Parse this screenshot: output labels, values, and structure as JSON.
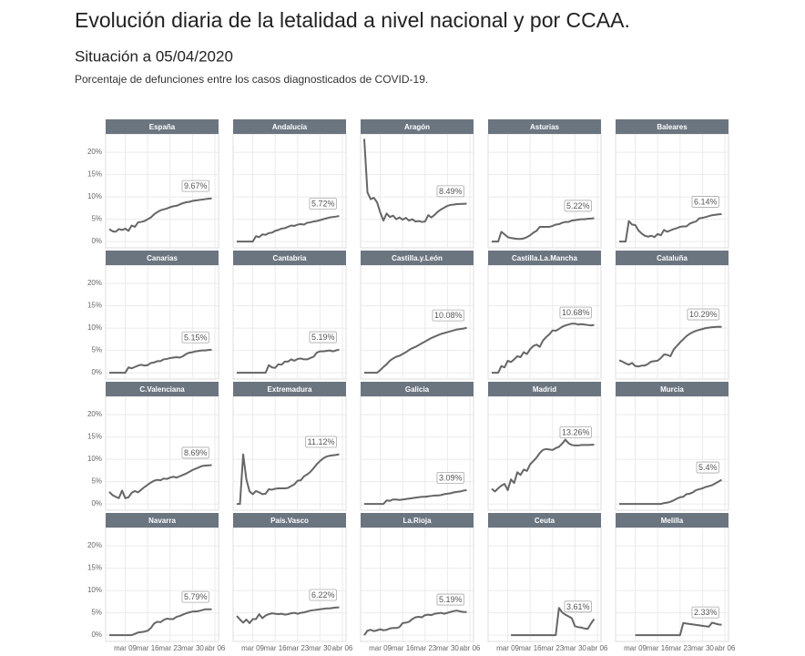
{
  "chart_data": {
    "type": "line",
    "title": "Evolución diaria de la letalidad a nivel nacional y por CCAA.",
    "subtitle": "Situación a 05/04/2020",
    "caption": "Porcentaje de defunciones entre los casos diagnosticados de COVID-19.",
    "color": "#666666",
    "grid": true,
    "ylim": [
      -1.4,
      24.1
    ],
    "yticks": [
      {
        "value": 0,
        "label": "0%"
      },
      {
        "value": 5,
        "label": "5%"
      },
      {
        "value": 10,
        "label": "10%"
      },
      {
        "value": 15,
        "label": "15%"
      },
      {
        "value": 20,
        "label": "20%"
      }
    ],
    "categories": [
      null,
      null,
      null,
      null,
      null,
      "mar 09",
      null,
      null,
      null,
      null,
      null,
      null,
      "mar 16",
      null,
      null,
      null,
      null,
      null,
      null,
      "mar 23",
      null,
      null,
      null,
      null,
      null,
      null,
      "mar 30",
      null,
      null,
      null,
      null,
      null,
      null,
      "abr 06"
    ],
    "panels": [
      {
        "name": "España",
        "last_label": "9.67%",
        "values": [
          2.8,
          2.3,
          2.2,
          2.8,
          2.6,
          2.9,
          2.4,
          3.6,
          3.3,
          4.3,
          4.4,
          4.6,
          5.0,
          5.4,
          6.1,
          6.6,
          7.0,
          7.2,
          7.4,
          7.7,
          7.9,
          8.0,
          8.3,
          8.6,
          8.8,
          8.9,
          9.1,
          9.2,
          9.3,
          9.4,
          9.5,
          9.6,
          9.67,
          null
        ]
      },
      {
        "name": "Andalucía",
        "last_label": "5.72%",
        "values": [
          0,
          0,
          0,
          0,
          0,
          0,
          1.2,
          1.0,
          1.6,
          1.5,
          1.9,
          2.0,
          2.4,
          2.6,
          2.9,
          3.0,
          3.3,
          3.6,
          3.5,
          3.8,
          3.9,
          3.8,
          4.2,
          4.3,
          4.5,
          4.6,
          4.8,
          5.0,
          5.2,
          5.4,
          5.5,
          5.6,
          5.72,
          null
        ]
      },
      {
        "name": "Aragón",
        "last_label": "8.49%",
        "values": [
          23,
          11,
          9.5,
          9.8,
          8.8,
          6.5,
          4.7,
          6.3,
          5.5,
          5.8,
          5.0,
          5.4,
          4.9,
          5.3,
          4.7,
          5.0,
          4.5,
          4.6,
          4.4,
          4.5,
          5.9,
          5.4,
          6.0,
          6.7,
          7.2,
          7.6,
          8.0,
          8.2,
          8.3,
          8.4,
          8.42,
          8.45,
          8.49,
          null
        ]
      },
      {
        "name": "Asturias",
        "last_label": "5.22%",
        "values": [
          0,
          0,
          0,
          2.2,
          1.6,
          1.0,
          0.8,
          0.7,
          0.6,
          0.6,
          0.7,
          1.0,
          1.4,
          2.0,
          2.4,
          3.3,
          3.3,
          3.3,
          3.3,
          3.5,
          3.8,
          3.9,
          4.2,
          4.4,
          4.4,
          4.7,
          4.8,
          4.9,
          5.0,
          5.0,
          5.1,
          5.15,
          5.22,
          null
        ]
      },
      {
        "name": "Baleares",
        "last_label": "6.14%",
        "values": [
          0,
          0,
          0,
          4.6,
          3.8,
          3.7,
          2.5,
          1.8,
          1.3,
          1.1,
          1.3,
          1.0,
          1.7,
          1.4,
          2.6,
          2.2,
          2.5,
          2.8,
          3.0,
          3.3,
          3.4,
          3.4,
          4.0,
          4.3,
          4.5,
          5.2,
          5.3,
          5.5,
          5.7,
          5.9,
          6.0,
          6.1,
          6.14,
          null
        ]
      },
      {
        "name": "Canarias",
        "last_label": "5.15%",
        "values": [
          0,
          0,
          0,
          0,
          0,
          0,
          1.2,
          1.0,
          1.3,
          1.6,
          1.8,
          1.6,
          1.7,
          2.2,
          2.3,
          2.6,
          2.6,
          3.0,
          3.1,
          3.3,
          3.4,
          3.5,
          3.4,
          3.7,
          4.2,
          4.5,
          4.6,
          4.8,
          4.9,
          5.0,
          5.0,
          5.1,
          5.15,
          null
        ]
      },
      {
        "name": "Cantabria",
        "last_label": "5.19%",
        "values": [
          0,
          0,
          0,
          0,
          0,
          0,
          0,
          0,
          0,
          0,
          1.7,
          1.2,
          1.1,
          1.9,
          1.8,
          2.5,
          2.5,
          3.0,
          2.7,
          3.1,
          3.2,
          3.0,
          3.0,
          3.3,
          3.6,
          4.5,
          4.8,
          4.8,
          4.9,
          5.0,
          4.8,
          5.0,
          5.19,
          null
        ]
      },
      {
        "name": "Castilla.y.León",
        "last_label": "10.08%",
        "values": [
          0,
          0,
          0,
          0,
          0,
          0.6,
          1.3,
          1.9,
          2.7,
          3.2,
          3.6,
          3.8,
          4.2,
          4.6,
          5.1,
          5.5,
          5.8,
          6.2,
          6.6,
          7.0,
          7.4,
          7.8,
          8.1,
          8.4,
          8.7,
          8.9,
          9.1,
          9.3,
          9.5,
          9.7,
          9.8,
          9.9,
          10.08,
          null
        ]
      },
      {
        "name": "Castilla.La.Mancha",
        "last_label": "10.68%",
        "values": [
          0,
          0,
          0,
          1.5,
          1.2,
          2.7,
          2.4,
          3.0,
          3.7,
          3.5,
          4.6,
          4.2,
          5.3,
          6.0,
          6.3,
          5.8,
          7.2,
          8.0,
          8.6,
          9.5,
          9.4,
          9.8,
          10.3,
          10.6,
          10.8,
          11.0,
          11.0,
          10.8,
          10.9,
          10.8,
          10.7,
          10.6,
          10.68,
          null
        ]
      },
      {
        "name": "Cataluña",
        "last_label": "10.29%",
        "values": [
          2.8,
          2.5,
          2.1,
          1.8,
          2.2,
          1.5,
          1.4,
          1.6,
          1.6,
          2.0,
          2.5,
          2.6,
          2.7,
          3.3,
          4.1,
          4.0,
          3.7,
          5.2,
          6.0,
          6.8,
          7.5,
          8.2,
          8.7,
          9.1,
          9.4,
          9.6,
          9.8,
          10.0,
          10.1,
          10.2,
          10.25,
          10.3,
          10.29,
          null
        ]
      },
      {
        "name": "C.Valenciana",
        "last_label": "8.69%",
        "values": [
          2.7,
          2.0,
          1.6,
          1.3,
          3.0,
          1.3,
          1.5,
          2.5,
          2.9,
          2.6,
          3.2,
          3.8,
          4.3,
          4.8,
          5.2,
          5.4,
          5.3,
          5.7,
          5.6,
          5.9,
          6.1,
          5.9,
          6.2,
          6.5,
          6.8,
          7.2,
          7.6,
          7.9,
          8.2,
          8.5,
          8.6,
          8.65,
          8.69,
          null
        ]
      },
      {
        "name": "Extremadura",
        "last_label": "11.12%",
        "values": [
          0,
          0,
          11.1,
          5.5,
          2.8,
          2.2,
          2.9,
          2.6,
          2.2,
          2.3,
          3.3,
          3.2,
          3.4,
          3.5,
          3.5,
          3.5,
          3.6,
          4.0,
          4.4,
          5.2,
          5.3,
          6.2,
          6.6,
          7.2,
          8.0,
          8.9,
          9.6,
          10.2,
          10.6,
          10.8,
          10.9,
          11.0,
          11.12,
          null
        ]
      },
      {
        "name": "Galicia",
        "last_label": "3.09%",
        "values": [
          0,
          0,
          0,
          0,
          0,
          0,
          0,
          0.8,
          0.7,
          1.0,
          1.0,
          0.9,
          1.0,
          1.1,
          1.2,
          1.3,
          1.4,
          1.5,
          1.6,
          1.6,
          1.7,
          1.8,
          1.9,
          1.9,
          2.0,
          2.2,
          2.3,
          2.4,
          2.6,
          2.7,
          2.8,
          3.0,
          3.09,
          null
        ]
      },
      {
        "name": "Madrid",
        "last_label": "13.26%",
        "values": [
          3.4,
          2.8,
          3.5,
          4.1,
          4.5,
          3.1,
          5.5,
          4.7,
          7.1,
          6.5,
          7.7,
          7.4,
          8.9,
          9.6,
          10.4,
          11.4,
          12.1,
          12.3,
          12.2,
          12.1,
          12.5,
          12.8,
          13.5,
          14.4,
          13.6,
          13.2,
          13.1,
          13.1,
          13.2,
          13.2,
          13.2,
          13.25,
          13.26,
          null
        ]
      },
      {
        "name": "Murcia",
        "last_label": "5.4%",
        "values": [
          0,
          0,
          0,
          0,
          0,
          0,
          0,
          0,
          0,
          0,
          0,
          0,
          0,
          0,
          0.2,
          0.3,
          0.5,
          0.8,
          1.2,
          1.5,
          1.6,
          2.2,
          2.3,
          2.6,
          3.1,
          3.3,
          3.5,
          3.8,
          4.0,
          4.2,
          4.6,
          5.0,
          5.4,
          null
        ]
      },
      {
        "name": "Navarra",
        "last_label": "5.79%",
        "values": [
          0,
          0,
          0,
          0,
          0,
          0,
          0,
          0,
          0.3,
          0.6,
          0.7,
          0.8,
          1.0,
          1.6,
          2.6,
          3.0,
          2.9,
          3.4,
          3.7,
          3.6,
          3.6,
          4.1,
          4.3,
          4.6,
          4.9,
          5.1,
          5.3,
          5.3,
          5.4,
          5.6,
          5.8,
          5.8,
          5.79,
          null
        ]
      },
      {
        "name": "País.Vasco",
        "last_label": "6.22%",
        "values": [
          4.3,
          3.5,
          2.8,
          3.5,
          2.7,
          3.6,
          3.6,
          4.7,
          3.8,
          4.4,
          4.7,
          4.9,
          4.8,
          4.7,
          4.8,
          4.6,
          4.7,
          4.9,
          5.0,
          4.8,
          5.0,
          5.1,
          5.3,
          5.5,
          5.6,
          5.7,
          5.8,
          5.9,
          6.0,
          6.0,
          6.1,
          6.2,
          6.22,
          null
        ]
      },
      {
        "name": "La.Rioja",
        "last_label": "5.19%",
        "values": [
          0,
          1.0,
          1.2,
          0.9,
          1.1,
          1.3,
          1.1,
          1.2,
          1.5,
          1.6,
          1.6,
          1.8,
          2.7,
          2.8,
          3.0,
          3.6,
          4.0,
          4.1,
          4.0,
          4.5,
          4.6,
          4.5,
          4.8,
          4.9,
          5.0,
          4.8,
          5.0,
          5.2,
          5.4,
          5.5,
          5.3,
          5.2,
          5.19,
          null
        ]
      },
      {
        "name": "Ceuta",
        "last_label": "3.61%",
        "values": [
          null,
          null,
          null,
          null,
          null,
          null,
          0,
          0,
          0,
          0,
          0,
          0,
          0,
          0,
          0,
          0,
          0,
          0,
          0,
          0,
          0,
          6.1,
          5.1,
          4.6,
          4.2,
          3.8,
          2.0,
          1.8,
          1.7,
          1.5,
          1.4,
          2.6,
          3.61,
          null
        ]
      },
      {
        "name": "Melilla",
        "last_label": "2.33%",
        "values": [
          null,
          null,
          null,
          null,
          null,
          0,
          0,
          0,
          0,
          0,
          0,
          0,
          0,
          0,
          0,
          0,
          0,
          0,
          0,
          0,
          2.7,
          2.6,
          2.5,
          2.4,
          2.3,
          2.2,
          2.1,
          2.0,
          1.9,
          2.8,
          2.6,
          2.4,
          2.33,
          null
        ]
      }
    ]
  }
}
